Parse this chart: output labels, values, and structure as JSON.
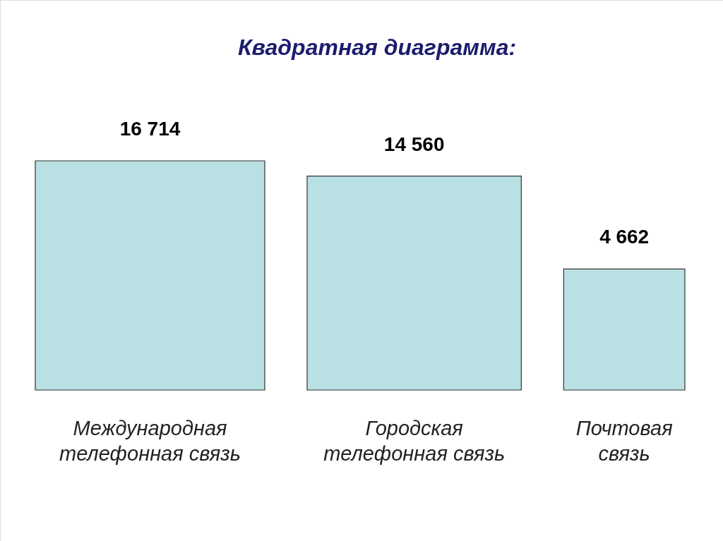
{
  "chart_data": {
    "type": "other",
    "title": "Квадратная диаграмма:",
    "categories": [
      "Международная\nтелефонная связь",
      "Городская\nтелефонная связь",
      "Почтовая\nсвязь"
    ],
    "values": [
      16714,
      14560,
      4662
    ],
    "value_labels": [
      "16 714",
      "14 560",
      "4 662"
    ],
    "color": "#b9e0e2"
  }
}
